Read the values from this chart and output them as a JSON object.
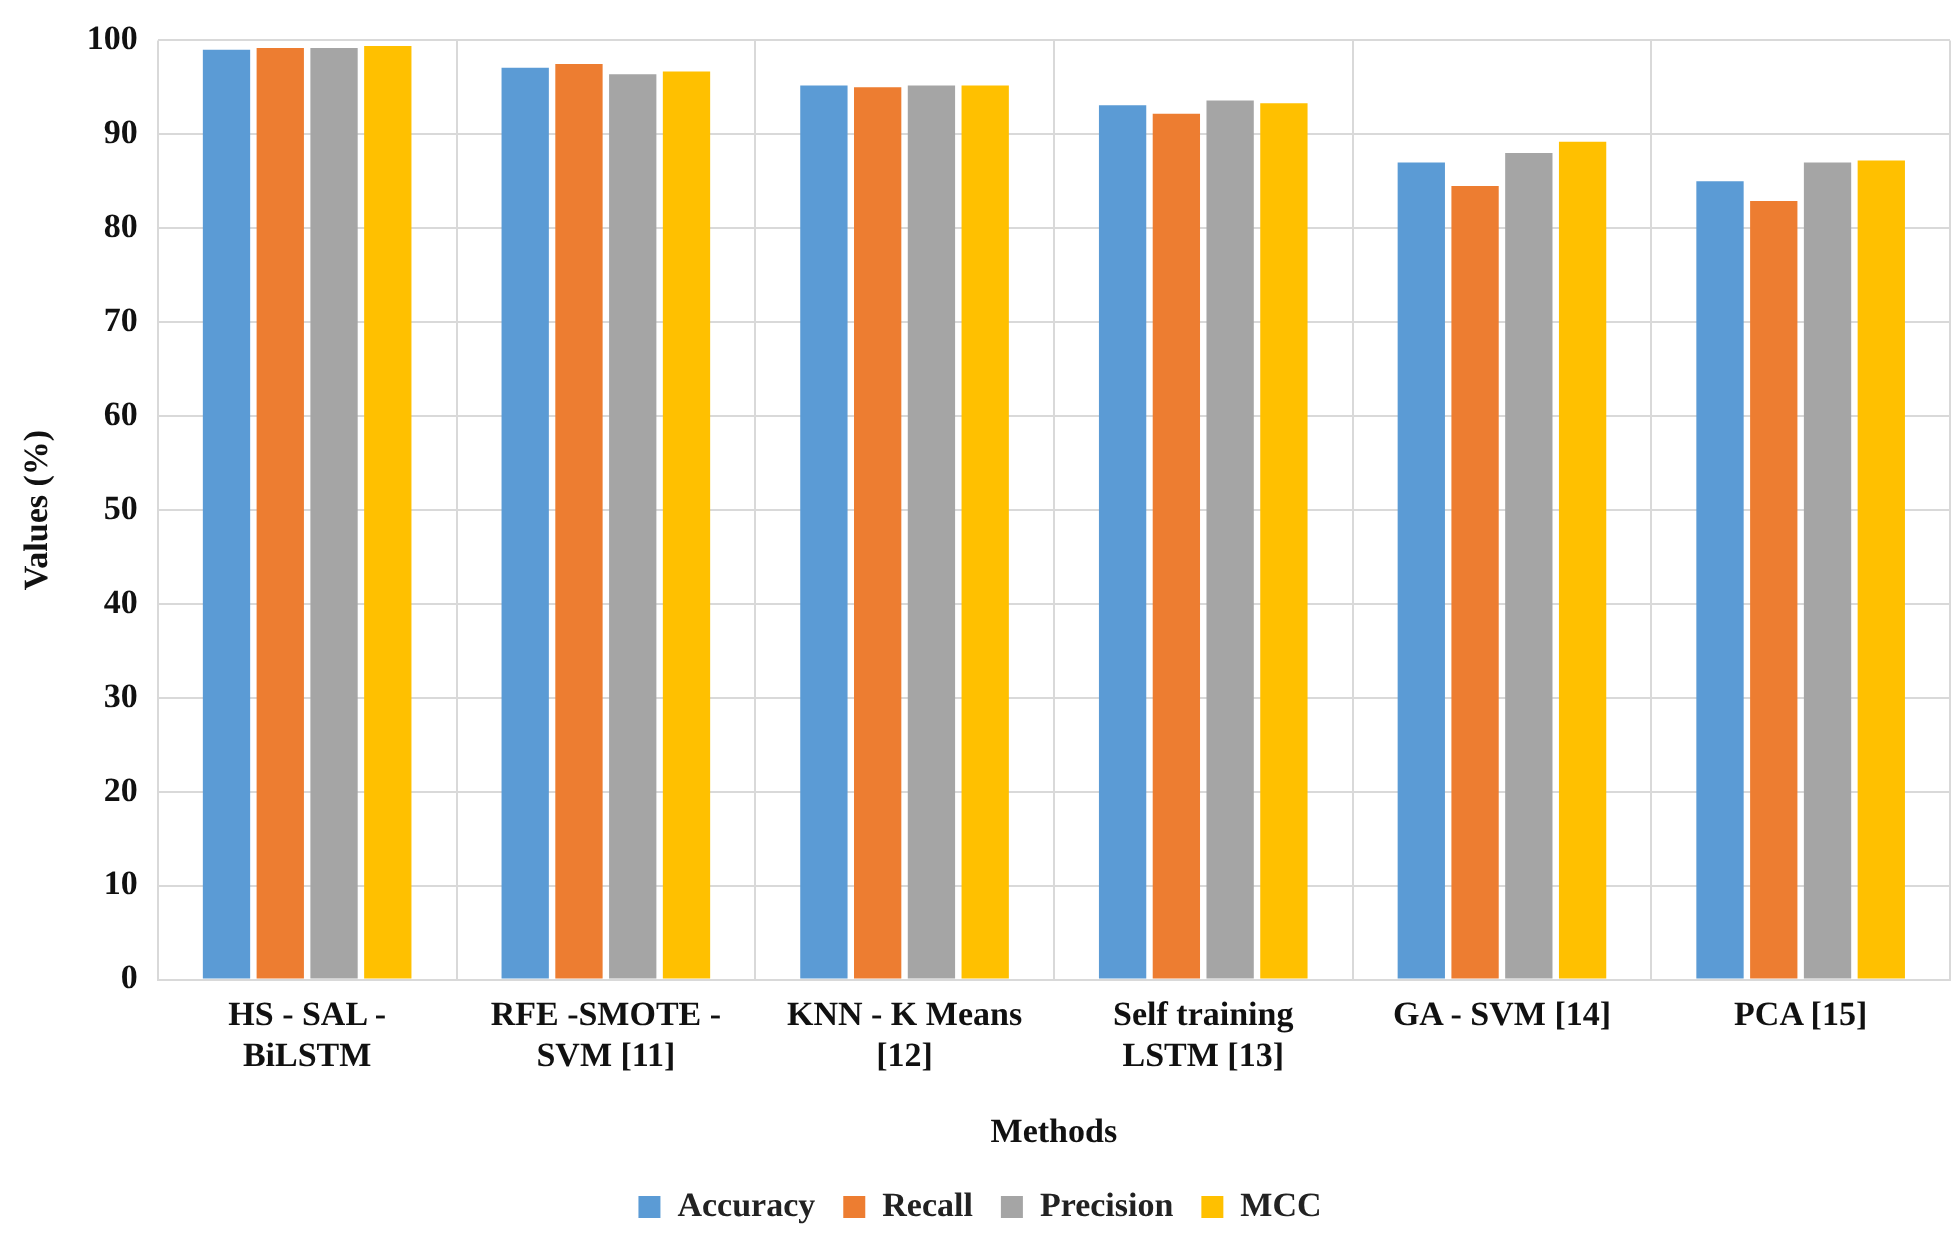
{
  "chart_data": {
    "type": "bar",
    "xlabel": "Methods",
    "ylabel": "Values (%)",
    "categories": [
      "HS - SAL - BiLSTM",
      "RFE -SMOTE - SVM [11]",
      "KNN - K Means [12]",
      "Self training LSTM [13]",
      "GA - SVM [14]",
      "PCA [15]"
    ],
    "series": [
      {
        "name": "Accuracy",
        "color": "#5b9bd5",
        "values": [
          99.0,
          97.1,
          95.2,
          93.1,
          87.0,
          85.0
        ]
      },
      {
        "name": "Recall",
        "color": "#ed7d31",
        "values": [
          99.2,
          97.5,
          95.0,
          92.2,
          84.5,
          82.9
        ]
      },
      {
        "name": "Precision",
        "color": "#a5a5a5",
        "values": [
          99.2,
          96.4,
          95.2,
          93.6,
          88.0,
          87.0
        ]
      },
      {
        "name": "MCC",
        "color": "#ffc000",
        "values": [
          99.4,
          96.7,
          95.2,
          93.3,
          89.2,
          87.2
        ]
      }
    ],
    "ylim": [
      0,
      100
    ],
    "yticks": [
      0,
      10,
      20,
      30,
      40,
      50,
      60,
      70,
      80,
      90,
      100
    ],
    "grid": true,
    "legend": "bottom"
  }
}
